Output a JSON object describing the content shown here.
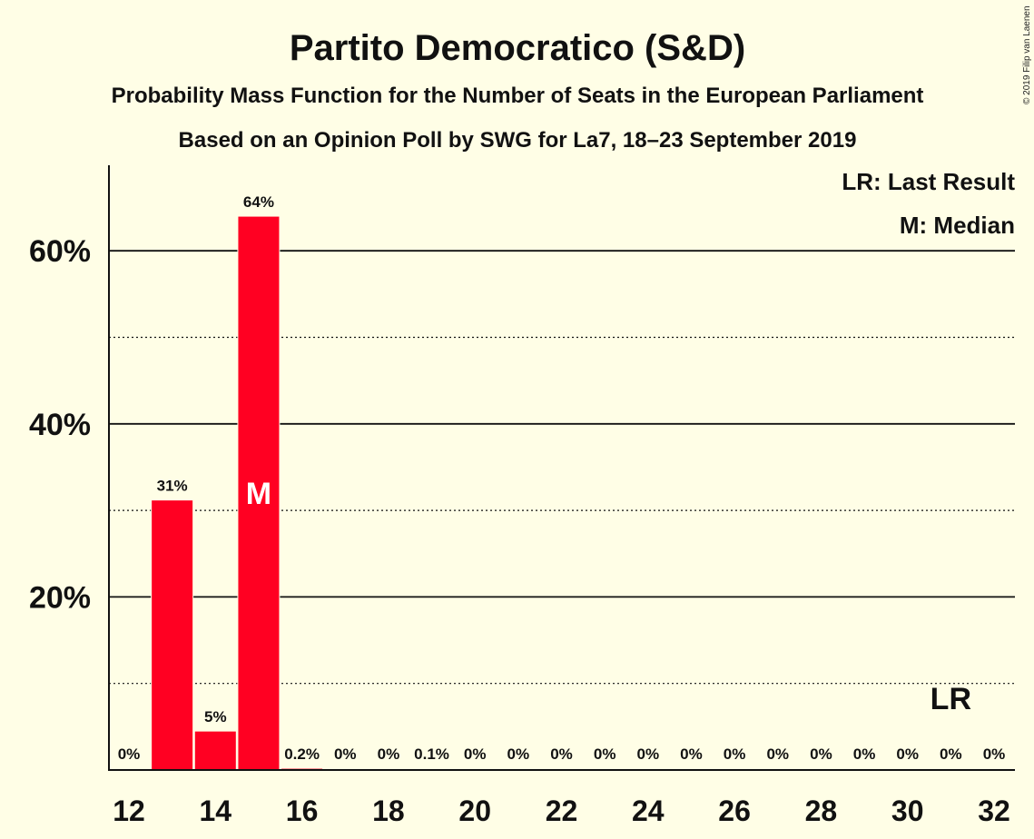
{
  "title": "Partito Democratico (S&D)",
  "subtitle_1": "Probability Mass Function for the Number of Seats in the European Parliament",
  "subtitle_2": "Based on an Opinion Poll by SWG for La7, 18–23 September 2019",
  "copyright": "© 2019 Filip van Laenen",
  "legend": {
    "last_result": "LR: Last Result",
    "median": "M: Median"
  },
  "colors": {
    "bar": "#FF0022",
    "background": "#FFFEE6",
    "text": "#111111"
  },
  "chart_data": {
    "type": "bar",
    "x": [
      12,
      13,
      14,
      15,
      16,
      17,
      18,
      19,
      20,
      21,
      22,
      23,
      24,
      25,
      26,
      27,
      28,
      29,
      30,
      31,
      32
    ],
    "values": [
      0,
      31.2,
      4.5,
      64,
      0.2,
      0,
      0,
      0.1,
      0,
      0,
      0,
      0,
      0,
      0,
      0,
      0,
      0,
      0,
      0,
      0,
      0
    ],
    "data_labels": [
      "0%",
      "31%",
      "5%",
      "64%",
      "0.2%",
      "0%",
      "0%",
      "0.1%",
      "0%",
      "0%",
      "0%",
      "0%",
      "0%",
      "0%",
      "0%",
      "0%",
      "0%",
      "0%",
      "0%",
      "0%",
      "0%"
    ],
    "x_tick_labels": [
      "12",
      "14",
      "16",
      "18",
      "20",
      "22",
      "24",
      "26",
      "28",
      "30",
      "32"
    ],
    "y_ticks": [
      20,
      40,
      60
    ],
    "y_tick_labels": [
      "20%",
      "40%",
      "60%"
    ],
    "y_minor_gridlines": [
      10,
      30,
      50
    ],
    "ylim": [
      0,
      70
    ],
    "median": {
      "x": 15,
      "label": "M"
    },
    "last_result": {
      "x": 31,
      "label": "LR"
    },
    "grid": true,
    "legend_position": "top-right"
  }
}
